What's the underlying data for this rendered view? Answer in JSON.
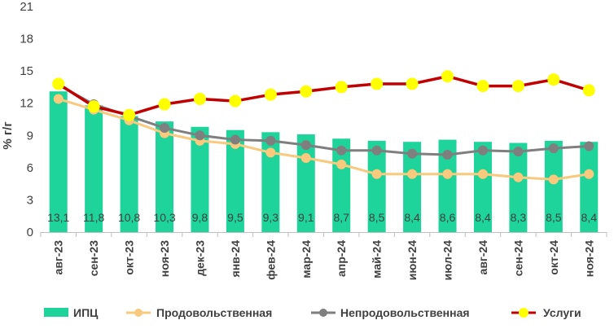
{
  "chart_data": {
    "type": "bar+line",
    "ylabel": "% г/г",
    "ylim": [
      0,
      21
    ],
    "yticks": [
      0,
      3,
      6,
      9,
      12,
      15,
      18,
      21
    ],
    "grid": false,
    "legend_position": "bottom",
    "categories": [
      "авг-23",
      "сен-23",
      "окт-23",
      "ноя-23",
      "дек-23",
      "янв-24",
      "фев-24",
      "мар-24",
      "апр-24",
      "май-24",
      "июн-24",
      "июл-24",
      "авг-24",
      "сен-24",
      "окт-24",
      "ноя-24"
    ],
    "bar_series": {
      "name": "ИПЦ",
      "color": "#1ed49a",
      "values": [
        13.1,
        11.8,
        10.8,
        10.3,
        9.8,
        9.5,
        9.3,
        9.1,
        8.7,
        8.5,
        8.4,
        8.6,
        8.4,
        8.3,
        8.5,
        8.4
      ],
      "labels": [
        "13,1",
        "11,8",
        "10,8",
        "10,3",
        "9,8",
        "9,5",
        "9,3",
        "9,1",
        "8,7",
        "8,5",
        "8,4",
        "8,6",
        "8,4",
        "8,3",
        "8,5",
        "8,4"
      ]
    },
    "line_series": [
      {
        "name": "Продовольственная",
        "color": "#f9c97e",
        "marker_color": "#f9c97e",
        "values": [
          12.4,
          11.4,
          10.4,
          9.2,
          8.5,
          8.2,
          7.4,
          6.9,
          6.3,
          5.4,
          5.4,
          5.4,
          5.4,
          5.1,
          4.9,
          5.4
        ]
      },
      {
        "name": "Непродовольственная",
        "color": "#7f7f7f",
        "marker_color": "#7f7f7f",
        "values": [
          13.7,
          11.9,
          10.8,
          9.7,
          9.0,
          8.6,
          8.5,
          8.1,
          7.6,
          7.6,
          7.3,
          7.2,
          7.6,
          7.5,
          7.8,
          8.0
        ]
      },
      {
        "name": "Услуги",
        "color": "#c00000",
        "marker_color": "#ffff00",
        "values": [
          13.8,
          11.7,
          10.9,
          11.9,
          12.4,
          12.2,
          12.8,
          13.1,
          13.5,
          13.8,
          13.8,
          14.5,
          13.6,
          13.6,
          14.2,
          13.2
        ]
      }
    ]
  }
}
